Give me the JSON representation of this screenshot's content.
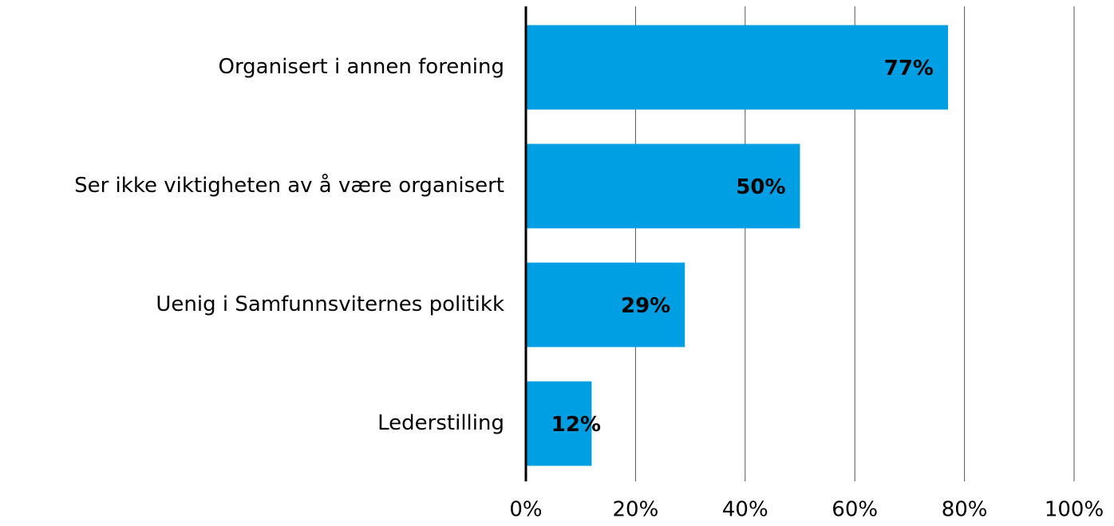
{
  "chart_data": {
    "type": "hbar",
    "categories": [
      "Organisert i annen forening",
      "Ser ikke viktigheten av å være organisert",
      "Uenig i Samfunnsviternes politikk",
      "Lederstilling"
    ],
    "values": [
      77,
      50,
      29,
      12
    ],
    "value_labels": [
      "77%",
      "50%",
      "29%",
      "12%"
    ],
    "color": "#009fe3",
    "xlim": [
      0,
      100
    ],
    "xticks": [
      {
        "value": 0,
        "label": "0%"
      },
      {
        "value": 20,
        "label": "20%"
      },
      {
        "value": 40,
        "label": "40%"
      },
      {
        "value": 60,
        "label": "60%"
      },
      {
        "value": 80,
        "label": "80%"
      },
      {
        "value": 100,
        "label": "100%"
      }
    ],
    "grid": true
  }
}
